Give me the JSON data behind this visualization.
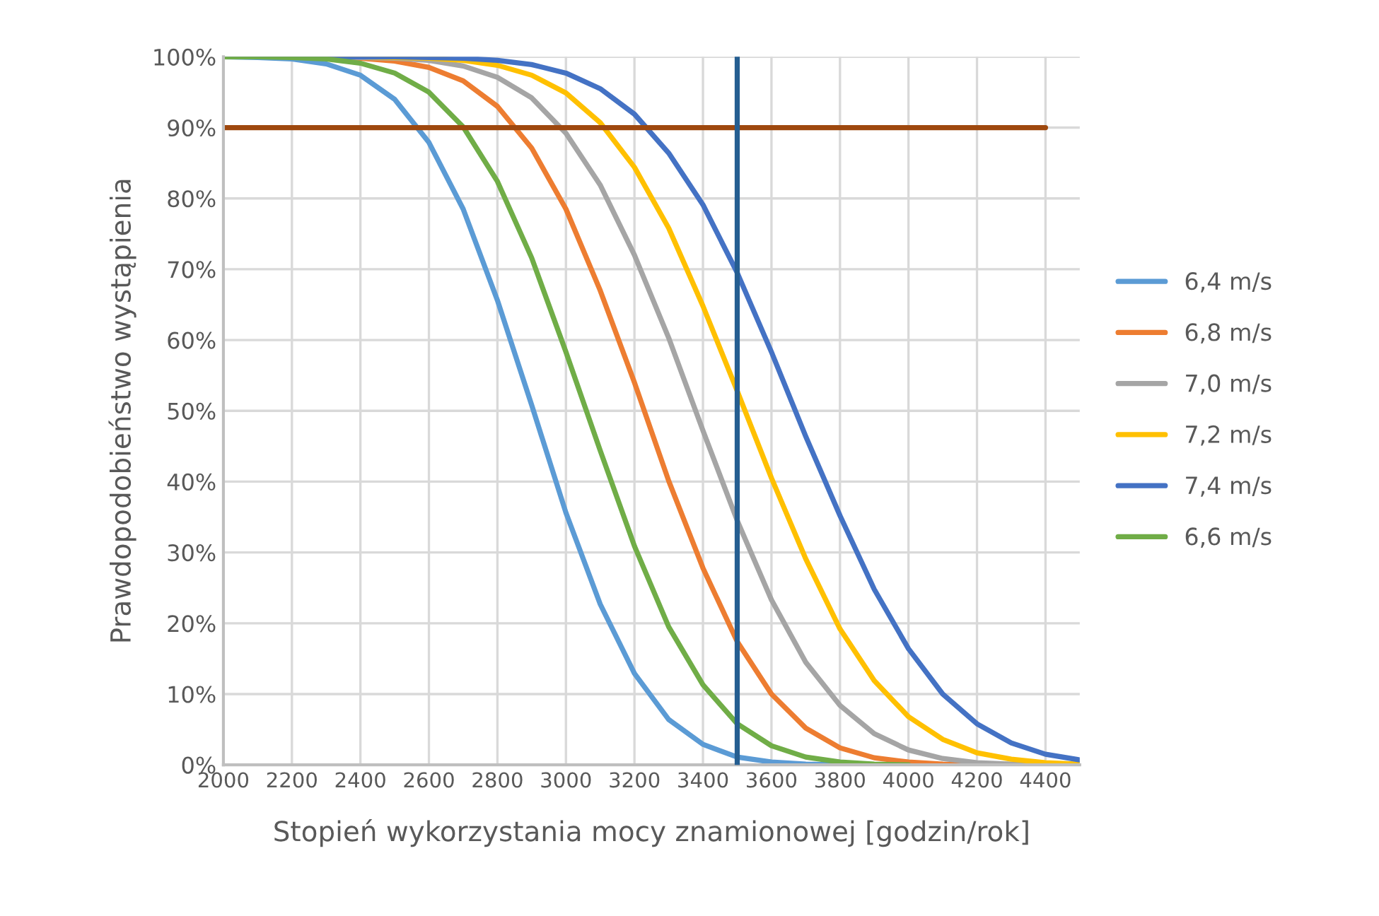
{
  "chart_data": {
    "type": "line",
    "xlabel": "Stopień wykorzystania mocy znamionowej [godzin/rok]",
    "ylabel": "Prawdopodobieństwo wystąpienia",
    "xlim": [
      2000,
      4500
    ],
    "xticks": [
      2000,
      2200,
      2400,
      2600,
      2800,
      3000,
      3200,
      3400,
      3600,
      3800,
      4000,
      4200,
      4400
    ],
    "ylim": [
      0,
      100
    ],
    "yticks": [
      {
        "value": 0,
        "label": "0%"
      },
      {
        "value": 10,
        "label": "10%"
      },
      {
        "value": 20,
        "label": "20%"
      },
      {
        "value": 30,
        "label": "30%"
      },
      {
        "value": 40,
        "label": "40%"
      },
      {
        "value": 50,
        "label": "50%"
      },
      {
        "value": 60,
        "label": "60%"
      },
      {
        "value": 70,
        "label": "70%"
      },
      {
        "value": 80,
        "label": "80%"
      },
      {
        "value": 90,
        "label": "90%"
      },
      {
        "value": 100,
        "label": "100%"
      }
    ],
    "grid": true,
    "legend": "right",
    "marker": "none",
    "line_style": "solid",
    "ref_lines": [
      {
        "axis": "x",
        "value": 3500,
        "color": "#255e91"
      }
    ],
    "series": [
      {
        "name": "6,4 m/s",
        "color": "#5b9bd5",
        "x": [
          2000,
          2100,
          2200,
          2300,
          2400,
          2500,
          2600,
          2700,
          2800,
          2900,
          3000,
          3100,
          3200,
          3300,
          3400,
          3500,
          3600,
          3700,
          3800
        ],
        "values": [
          100,
          99.9,
          99.7,
          99.0,
          97.4,
          94.0,
          87.9,
          78.5,
          65.6,
          50.8,
          35.6,
          22.7,
          12.9,
          6.4,
          2.9,
          1.1,
          0.4,
          0.1,
          0
        ]
      },
      {
        "name": "6,8 m/s",
        "color": "#ed7d31",
        "x": [
          2300,
          2400,
          2500,
          2600,
          2700,
          2800,
          2900,
          3000,
          3100,
          3200,
          3300,
          3400,
          3500,
          3600,
          3700,
          3800,
          3900,
          4000,
          4100,
          4200
        ],
        "values": [
          99.9,
          99.8,
          99.4,
          98.5,
          96.6,
          93.0,
          87.1,
          78.5,
          67.0,
          54.0,
          40.1,
          27.8,
          17.4,
          10.0,
          5.2,
          2.4,
          1.0,
          0.4,
          0.1,
          0
        ]
      },
      {
        "name": "7,0 m/s",
        "color": "#a5a5a5",
        "x": [
          2000,
          2300,
          2400,
          2500,
          2600,
          2700,
          2800,
          2900,
          3000,
          3100,
          3200,
          3300,
          3400,
          3500,
          3600,
          3700,
          3800,
          3900,
          4000,
          4100,
          4200,
          4300,
          4400
        ],
        "values": [
          100,
          100,
          99.9,
          99.8,
          99.5,
          98.7,
          97.1,
          94.2,
          89.2,
          81.9,
          72.0,
          60.3,
          47.2,
          34.5,
          23.3,
          14.5,
          8.4,
          4.4,
          2.1,
          0.9,
          0.3,
          0.1,
          0
        ]
      },
      {
        "name": "7,2 m/s",
        "color": "#ffc000",
        "x": [
          2000,
          2400,
          2500,
          2600,
          2700,
          2800,
          2900,
          3000,
          3100,
          3200,
          3300,
          3400,
          3500,
          3600,
          3700,
          3800,
          3900,
          4000,
          4100,
          4200,
          4300,
          4400,
          4500
        ],
        "values": [
          100,
          100,
          99.9,
          99.8,
          99.5,
          98.8,
          97.4,
          94.9,
          90.7,
          84.4,
          75.8,
          64.8,
          52.8,
          40.5,
          29.1,
          19.2,
          11.9,
          6.8,
          3.6,
          1.7,
          0.8,
          0.3,
          0.1
        ]
      },
      {
        "name": "7,4 m/s",
        "color": "#4472c4",
        "x": [
          2000,
          2500,
          2600,
          2700,
          2800,
          2900,
          3000,
          3100,
          3200,
          3300,
          3400,
          3500,
          3600,
          3700,
          3800,
          3900,
          4000,
          4100,
          4200,
          4300,
          4400,
          4500
        ],
        "values": [
          100,
          100,
          99.9,
          99.8,
          99.5,
          98.9,
          97.7,
          95.5,
          91.9,
          86.4,
          79.1,
          69.5,
          58.3,
          46.4,
          35.2,
          24.8,
          16.4,
          10.0,
          5.8,
          3.1,
          1.5,
          0.7
        ]
      },
      {
        "name": "6,6 m/s",
        "color": "#70ad47",
        "x": [
          2000,
          2100,
          2200,
          2300,
          2400,
          2500,
          2600,
          2700,
          2800,
          2900,
          3000,
          3100,
          3200,
          3300,
          3400,
          3500,
          3600,
          3700,
          3800,
          3900,
          4000
        ],
        "values": [
          100,
          100,
          99.9,
          99.7,
          99.1,
          97.7,
          95.0,
          90.1,
          82.4,
          71.6,
          58.3,
          44.4,
          30.9,
          19.5,
          11.3,
          5.8,
          2.7,
          1.1,
          0.4,
          0.1,
          0
        ]
      },
      {
        "color": "#9e480e",
        "x": [
          2000,
          4400
        ],
        "values": [
          90,
          90
        ]
      }
    ]
  }
}
